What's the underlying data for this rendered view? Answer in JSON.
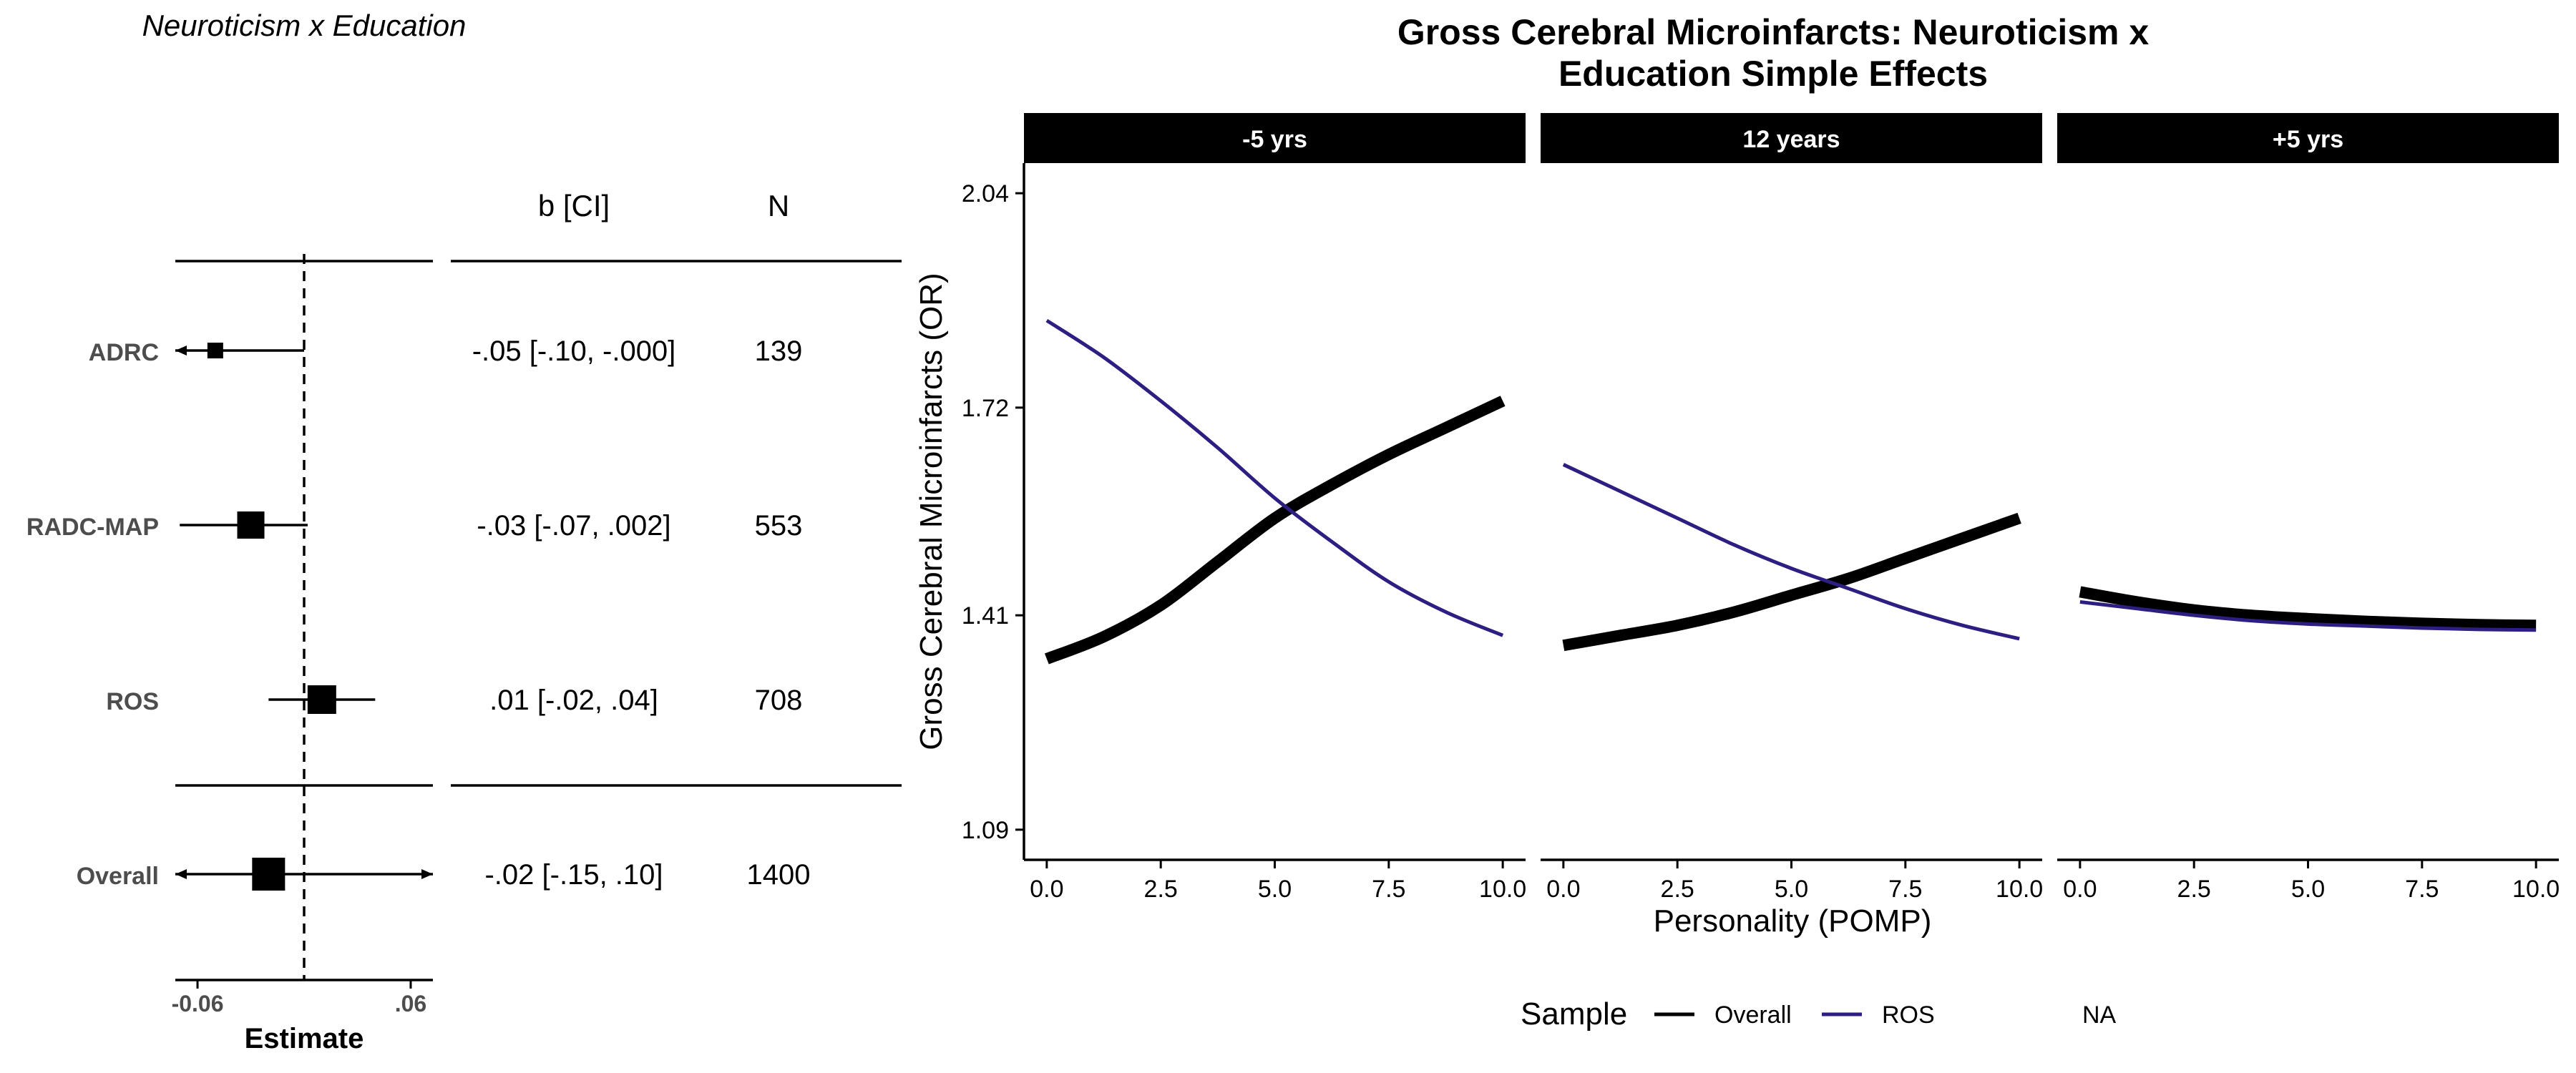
{
  "chart_data": [
    {
      "type": "forest",
      "title": "Neuroticism x Education",
      "xlabel": "Estimate",
      "xlim": [
        -0.0725,
        0.0725
      ],
      "reference_line": 0,
      "ticks": [
        {
          "value": -0.06,
          "label": "-0.06"
        },
        {
          "value": 0.06,
          "label": ".06"
        }
      ],
      "columns": {
        "estimate_header": "b [CI]",
        "n_header": "N"
      },
      "rows": [
        {
          "label": "ADRC",
          "estimate": -0.05,
          "lower": -0.1,
          "upper": -0.0,
          "ci_text": "-.05 [-.10, -.000]",
          "n": "139"
        },
        {
          "label": "RADC-MAP",
          "estimate": -0.03,
          "lower": -0.07,
          "upper": 0.002,
          "ci_text": "-.03 [-.07, .002]",
          "n": "553"
        },
        {
          "label": "ROS",
          "estimate": 0.01,
          "lower": -0.02,
          "upper": 0.04,
          "ci_text": ".01 [-.02, .04]",
          "n": "708"
        },
        {
          "label": "Overall",
          "estimate": -0.02,
          "lower": -0.15,
          "upper": 0.1,
          "ci_text": "-.02 [-.15, .10]",
          "n": "1400"
        }
      ]
    },
    {
      "type": "line",
      "title_lines": [
        "Gross Cerebral Microinfarcts: Neuroticism x",
        "Education Simple Effects"
      ],
      "xlabel": "Personality (POMP)",
      "ylabel": "Gross Cerebral Microinfarcts (OR)",
      "xlim": [
        -0.5,
        10.5
      ],
      "ylim": [
        1.045,
        2.085
      ],
      "x_ticks": [
        {
          "value": 0,
          "label": "0.0"
        },
        {
          "value": 2.5,
          "label": "2.5"
        },
        {
          "value": 5,
          "label": "5.0"
        },
        {
          "value": 7.5,
          "label": "7.5"
        },
        {
          "value": 10,
          "label": "10.0"
        }
      ],
      "y_ticks": [
        {
          "value": 1.09,
          "label": "1.09"
        },
        {
          "value": 1.41,
          "label": "1.41"
        },
        {
          "value": 1.72,
          "label": "1.72"
        },
        {
          "value": 2.04,
          "label": "2.04"
        }
      ],
      "x": [
        0,
        1.25,
        2.5,
        3.75,
        5,
        6.25,
        7.5,
        8.75,
        10
      ],
      "panels": [
        {
          "label": "-5 yrs",
          "series": [
            {
              "name": "Overall",
              "values": [
                1.345,
                1.378,
                1.425,
                1.49,
                1.555,
                1.605,
                1.65,
                1.69,
                1.73
              ]
            },
            {
              "name": "ROS",
              "values": [
                1.85,
                1.795,
                1.73,
                1.66,
                1.585,
                1.52,
                1.46,
                1.415,
                1.38
              ]
            }
          ]
        },
        {
          "label": "12 years",
          "series": [
            {
              "name": "Overall",
              "values": [
                1.365,
                1.38,
                1.395,
                1.415,
                1.44,
                1.465,
                1.495,
                1.525,
                1.555
              ]
            },
            {
              "name": "ROS",
              "values": [
                1.635,
                1.595,
                1.555,
                1.515,
                1.48,
                1.45,
                1.42,
                1.395,
                1.375
              ]
            }
          ]
        },
        {
          "label": "+5 yrs",
          "series": [
            {
              "name": "Overall",
              "values": [
                1.445,
                1.43,
                1.418,
                1.41,
                1.405,
                1.401,
                1.398,
                1.396,
                1.395
              ]
            },
            {
              "name": "ROS",
              "values": [
                1.43,
                1.42,
                1.41,
                1.402,
                1.397,
                1.394,
                1.391,
                1.389,
                1.388
              ]
            }
          ]
        }
      ],
      "legend": {
        "title": "Sample",
        "placement": "bottom",
        "entries": [
          {
            "name": "Overall",
            "color": "#000000"
          },
          {
            "name": "ROS",
            "color": "#2d1e82"
          },
          {
            "name": "NA",
            "color": ""
          }
        ]
      }
    }
  ]
}
